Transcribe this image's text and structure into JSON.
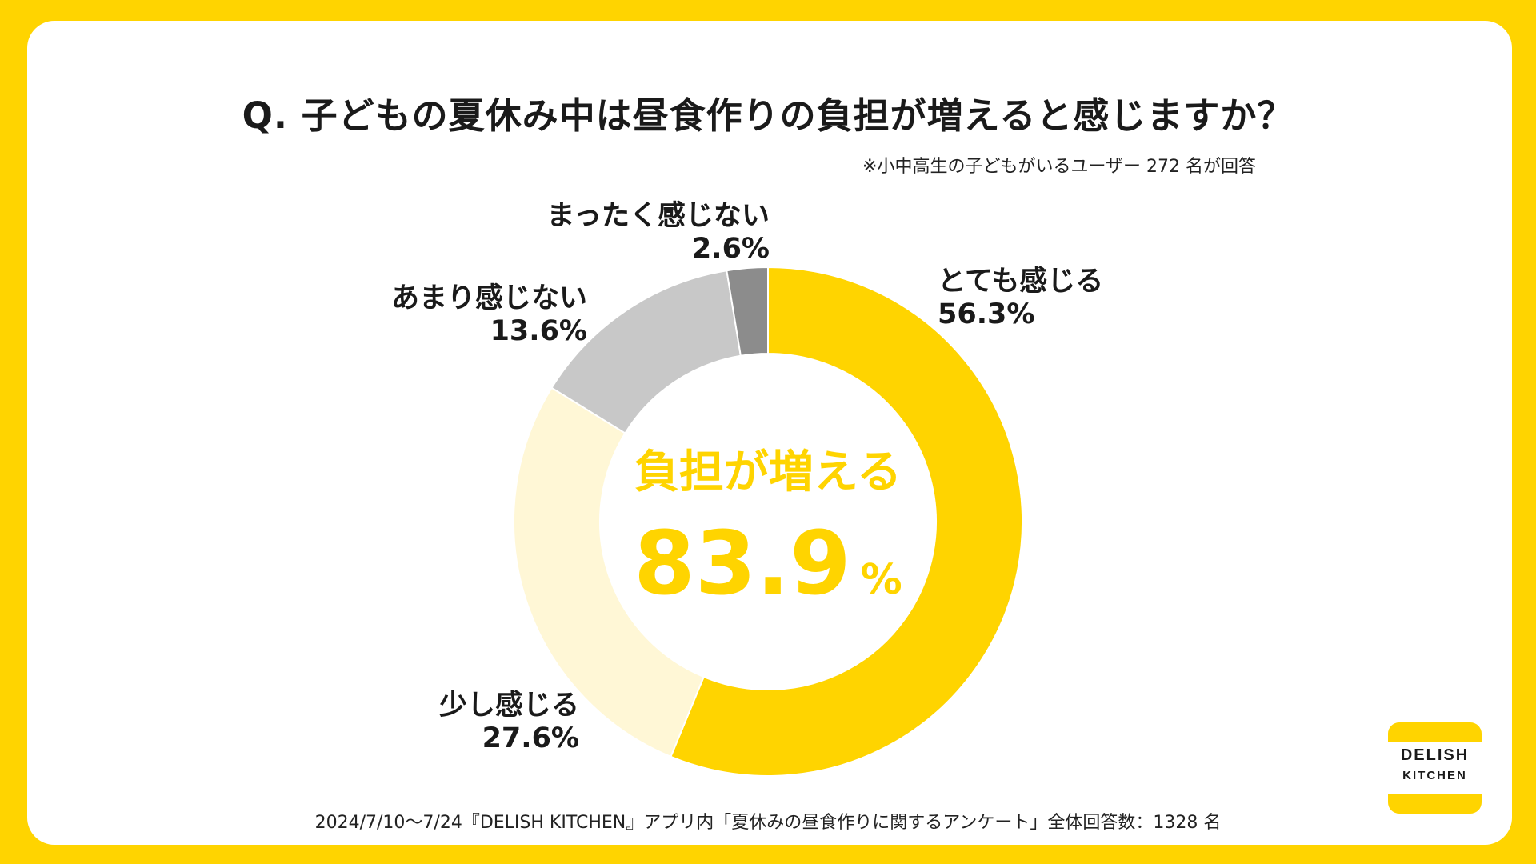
{
  "chart_data": {
    "type": "pie",
    "title": "Q. 子どもの夏休み中は昼食作りの負担が増えると感じますか？",
    "note": "※小中高生の子どもがいるユーザー 272 名が回答",
    "center_label": "負担が増える",
    "center_value": "83.9",
    "center_unit": "%",
    "slices": [
      {
        "label": "とても感じる",
        "value": 56.3,
        "value_text": "56.3%",
        "color": "#FFD400"
      },
      {
        "label": "少し感じる",
        "value": 27.6,
        "value_text": "27.6%",
        "color": "#FFF7D6"
      },
      {
        "label": "あまり感じない",
        "value": 13.6,
        "value_text": "13.6%",
        "color": "#C8C8C8"
      },
      {
        "label": "まったく感じない",
        "value": 2.6,
        "value_text": "2.6%",
        "color": "#8C8C8C"
      }
    ]
  },
  "footer": "2024/7/10〜7/24『DELISH KITCHEN』アプリ内「夏休みの昼食作りに関するアンケート」全体回答数：1328 名",
  "logo": {
    "line1": "DELISH",
    "line2": "KITCHEN"
  }
}
